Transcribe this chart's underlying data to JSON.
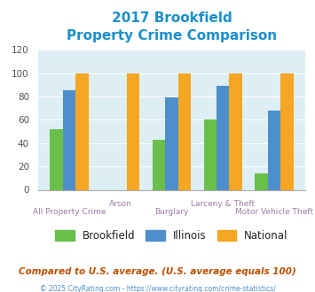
{
  "title_line1": "2017 Brookfield",
  "title_line2": "Property Crime Comparison",
  "categories": [
    "All Property Crime",
    "Arson",
    "Burglary",
    "Larceny & Theft",
    "Motor Vehicle Theft"
  ],
  "x_labels_top": [
    "",
    "Arson",
    "",
    "Larceny & Theft",
    ""
  ],
  "x_labels_bottom": [
    "All Property Crime",
    "",
    "Burglary",
    "",
    "Motor Vehicle Theft"
  ],
  "brookfield": [
    52,
    0,
    43,
    60,
    14
  ],
  "illinois": [
    85,
    0,
    79,
    89,
    68
  ],
  "national": [
    100,
    100,
    100,
    100,
    100
  ],
  "colors": {
    "brookfield": "#6abf4b",
    "illinois": "#4d8fcc",
    "national": "#f5a623"
  },
  "ylim": [
    0,
    120
  ],
  "yticks": [
    0,
    20,
    40,
    60,
    80,
    100,
    120
  ],
  "title_color": "#1a8fcc",
  "xlabel_color": "#9c7ca5",
  "legend_labels": [
    "Brookfield",
    "Illinois",
    "National"
  ],
  "footnote": "Compared to U.S. average. (U.S. average equals 100)",
  "copyright": "© 2025 CityRating.com - https://www.cityrating.com/crime-statistics/",
  "fig_bg_color": "#ffffff",
  "plot_bg_color": "#ddeef5"
}
